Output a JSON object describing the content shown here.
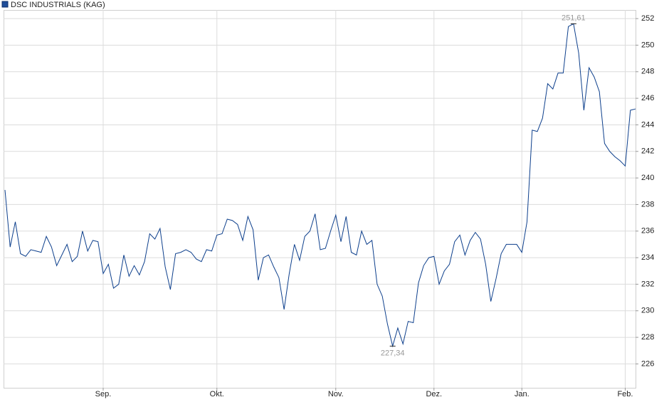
{
  "chart_data": {
    "type": "line",
    "categories": [
      null,
      null,
      null,
      null,
      null,
      null,
      null,
      null,
      null,
      null,
      null,
      null,
      null,
      null,
      null,
      null,
      null,
      null,
      null,
      "Sep.",
      null,
      null,
      null,
      null,
      null,
      null,
      null,
      null,
      null,
      null,
      null,
      null,
      null,
      null,
      null,
      null,
      null,
      null,
      null,
      null,
      null,
      "Okt.",
      null,
      null,
      null,
      null,
      null,
      null,
      null,
      null,
      null,
      null,
      null,
      null,
      null,
      null,
      null,
      null,
      null,
      null,
      null,
      null,
      null,
      null,
      "Nov.",
      null,
      null,
      null,
      null,
      null,
      null,
      null,
      null,
      null,
      null,
      null,
      null,
      null,
      null,
      null,
      null,
      null,
      null,
      "Dez.",
      null,
      null,
      null,
      null,
      null,
      null,
      null,
      null,
      null,
      null,
      null,
      null,
      null,
      null,
      null,
      null,
      "Jan.",
      null,
      null,
      null,
      null,
      null,
      null,
      null,
      null,
      null,
      null,
      null,
      null,
      null,
      null,
      null,
      null,
      null,
      null,
      null,
      "Feb.",
      null,
      null
    ],
    "series": [
      {
        "name": "DSC INDUSTRIALS (KAG)",
        "color": "#0d3f8c",
        "values": [
          239.1,
          234.8,
          236.7,
          234.3,
          234.1,
          234.6,
          234.5,
          234.4,
          235.6,
          234.8,
          233.4,
          234.2,
          235.0,
          233.7,
          234.1,
          236.0,
          234.5,
          235.3,
          235.2,
          232.8,
          233.5,
          231.7,
          232.0,
          234.2,
          232.6,
          233.4,
          232.7,
          233.7,
          235.8,
          235.4,
          236.2,
          233.3,
          231.6,
          234.3,
          234.4,
          234.6,
          234.4,
          233.9,
          233.7,
          234.6,
          234.5,
          235.7,
          235.8,
          236.9,
          236.8,
          236.5,
          235.3,
          237.1,
          236.1,
          232.3,
          234.0,
          234.2,
          233.3,
          232.5,
          230.1,
          232.8,
          235.0,
          233.8,
          235.6,
          236.0,
          237.3,
          234.6,
          234.7,
          236.0,
          237.2,
          235.2,
          237.1,
          234.4,
          234.2,
          236.0,
          235.0,
          235.3,
          232.0,
          231.1,
          229.0,
          227.34,
          228.7,
          227.5,
          229.2,
          229.1,
          232.1,
          233.4,
          234.0,
          234.1,
          232.0,
          233.0,
          233.5,
          235.2,
          235.7,
          234.2,
          235.3,
          235.9,
          235.4,
          233.5,
          230.7,
          232.4,
          234.3,
          235.0,
          235.0,
          235.0,
          234.4,
          236.7,
          243.6,
          243.5,
          244.5,
          247.1,
          246.7,
          247.9,
          247.9,
          251.4,
          251.61,
          249.4,
          245.1,
          248.3,
          247.6,
          246.5,
          242.6,
          242.0,
          241.6,
          241.3,
          240.9,
          245.1,
          245.2
        ]
      }
    ],
    "annotations": [
      {
        "text": "251,61",
        "value": 251.61
      },
      {
        "text": "227,34",
        "value": 227.34
      }
    ],
    "ylim": [
      224.2,
      252.65
    ],
    "yticks": [
      226,
      228,
      230,
      232,
      234,
      236,
      238,
      240,
      242,
      244,
      246,
      248,
      250,
      252
    ],
    "grid": true
  }
}
